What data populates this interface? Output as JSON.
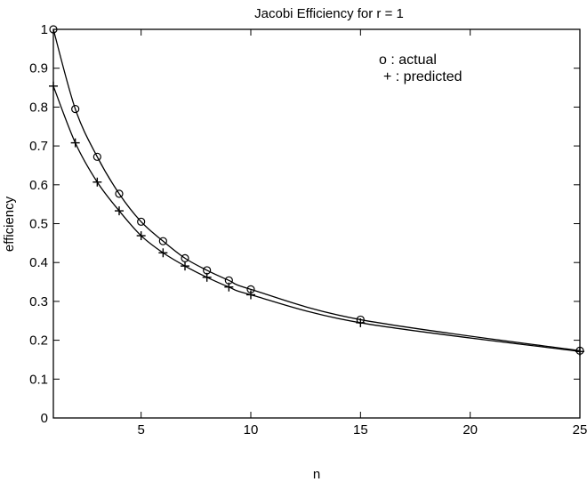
{
  "chart_data": {
    "type": "line",
    "title": "Jacobi Efficiency for r = 1",
    "xlabel": "n",
    "ylabel": "efficiency",
    "xlim": [
      1,
      25
    ],
    "ylim": [
      0,
      1
    ],
    "xticks": [
      5,
      10,
      15,
      20,
      25
    ],
    "yticks": [
      0,
      0.1,
      0.2,
      0.3,
      0.4,
      0.5,
      0.6,
      0.7,
      0.8,
      0.9,
      1
    ],
    "grid": false,
    "legend_position": "top-right",
    "series": [
      {
        "name": "actual",
        "legend_label": "o : actual",
        "marker": "circle",
        "x": [
          1,
          2,
          3,
          4,
          5,
          6,
          7,
          8,
          9,
          10,
          15,
          25
        ],
        "y": [
          1.0,
          0.795,
          0.672,
          0.577,
          0.505,
          0.455,
          0.411,
          0.38,
          0.354,
          0.331,
          0.253,
          0.173
        ]
      },
      {
        "name": "predicted",
        "legend_label": "+ : predicted",
        "marker": "plus",
        "x": [
          1,
          2,
          3,
          4,
          5,
          6,
          7,
          8,
          9,
          10,
          15,
          25
        ],
        "y": [
          0.854,
          0.708,
          0.607,
          0.533,
          0.469,
          0.425,
          0.391,
          0.362,
          0.337,
          0.317,
          0.245,
          0.171
        ]
      }
    ]
  }
}
